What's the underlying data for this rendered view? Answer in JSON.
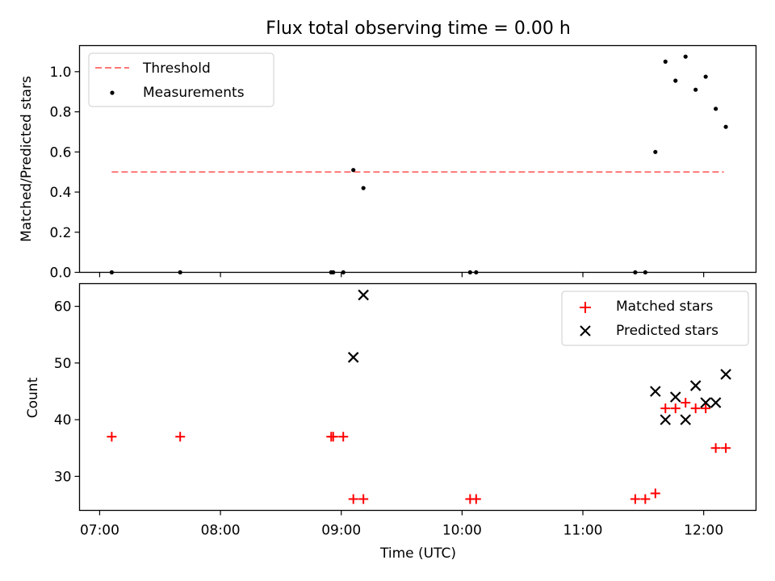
{
  "chart_data": [
    {
      "type": "scatter",
      "title": "Flux total observing time = 0.00 h",
      "xlabel": "",
      "ylabel": "Matched/Predicted stars",
      "x_is_time_utc": true,
      "xlim": [
        "06:50",
        "12:26"
      ],
      "ylim": [
        0,
        1.13
      ],
      "yticks": [
        "0.0",
        "0.2",
        "0.4",
        "0.6",
        "0.8",
        "1.0"
      ],
      "legend_position": "upper-left",
      "threshold": {
        "name": "Threshold",
        "value": 0.5,
        "x_range": [
          "07:06",
          "12:10"
        ],
        "style": "dashed",
        "color": "#ff7777"
      },
      "series": [
        {
          "name": "Measurements",
          "marker": "dot",
          "color": "#000000",
          "points": [
            {
              "x": "07:06",
              "y": 0.0
            },
            {
              "x": "07:40",
              "y": 0.0
            },
            {
              "x": "08:55",
              "y": 0.0
            },
            {
              "x": "08:56",
              "y": 0.0
            },
            {
              "x": "09:01",
              "y": 0.0
            },
            {
              "x": "09:06",
              "y": 0.51
            },
            {
              "x": "09:11",
              "y": 0.42
            },
            {
              "x": "10:04",
              "y": 0.0
            },
            {
              "x": "10:07",
              "y": 0.0
            },
            {
              "x": "11:26",
              "y": 0.0
            },
            {
              "x": "11:31",
              "y": 0.0
            },
            {
              "x": "11:36",
              "y": 0.6
            },
            {
              "x": "11:41",
              "y": 1.05
            },
            {
              "x": "11:46",
              "y": 0.955
            },
            {
              "x": "11:51",
              "y": 1.075
            },
            {
              "x": "11:56",
              "y": 0.91
            },
            {
              "x": "12:01",
              "y": 0.975
            },
            {
              "x": "12:06",
              "y": 0.815
            },
            {
              "x": "12:11",
              "y": 0.725
            }
          ]
        }
      ]
    },
    {
      "type": "scatter",
      "title": "",
      "xlabel": "Time (UTC)",
      "ylabel": "Count",
      "x_is_time_utc": true,
      "xlim": [
        "06:50",
        "12:26"
      ],
      "ylim": [
        24,
        64
      ],
      "xticks": [
        "07:00",
        "08:00",
        "09:00",
        "10:00",
        "11:00",
        "12:00"
      ],
      "yticks": [
        "30",
        "40",
        "50",
        "60"
      ],
      "legend_position": "upper-right",
      "series": [
        {
          "name": "Matched stars",
          "marker": "plus",
          "color": "#ff0000",
          "points": [
            {
              "x": "07:06",
              "y": 37
            },
            {
              "x": "07:40",
              "y": 37
            },
            {
              "x": "08:55",
              "y": 37
            },
            {
              "x": "08:56",
              "y": 37
            },
            {
              "x": "09:01",
              "y": 37
            },
            {
              "x": "09:06",
              "y": 26
            },
            {
              "x": "09:11",
              "y": 26
            },
            {
              "x": "10:04",
              "y": 26
            },
            {
              "x": "10:07",
              "y": 26
            },
            {
              "x": "11:26",
              "y": 26
            },
            {
              "x": "11:31",
              "y": 26
            },
            {
              "x": "11:36",
              "y": 27
            },
            {
              "x": "11:41",
              "y": 42
            },
            {
              "x": "11:46",
              "y": 42
            },
            {
              "x": "11:51",
              "y": 43
            },
            {
              "x": "11:56",
              "y": 42
            },
            {
              "x": "12:01",
              "y": 42
            },
            {
              "x": "12:06",
              "y": 35
            },
            {
              "x": "12:11",
              "y": 35
            }
          ]
        },
        {
          "name": "Predicted stars",
          "marker": "x",
          "color": "#000000",
          "points": [
            {
              "x": "09:06",
              "y": 51
            },
            {
              "x": "09:11",
              "y": 62
            },
            {
              "x": "11:36",
              "y": 45
            },
            {
              "x": "11:41",
              "y": 40
            },
            {
              "x": "11:46",
              "y": 44
            },
            {
              "x": "11:51",
              "y": 40
            },
            {
              "x": "11:56",
              "y": 46
            },
            {
              "x": "12:01",
              "y": 43
            },
            {
              "x": "12:06",
              "y": 43
            },
            {
              "x": "12:11",
              "y": 48
            }
          ]
        }
      ]
    }
  ]
}
